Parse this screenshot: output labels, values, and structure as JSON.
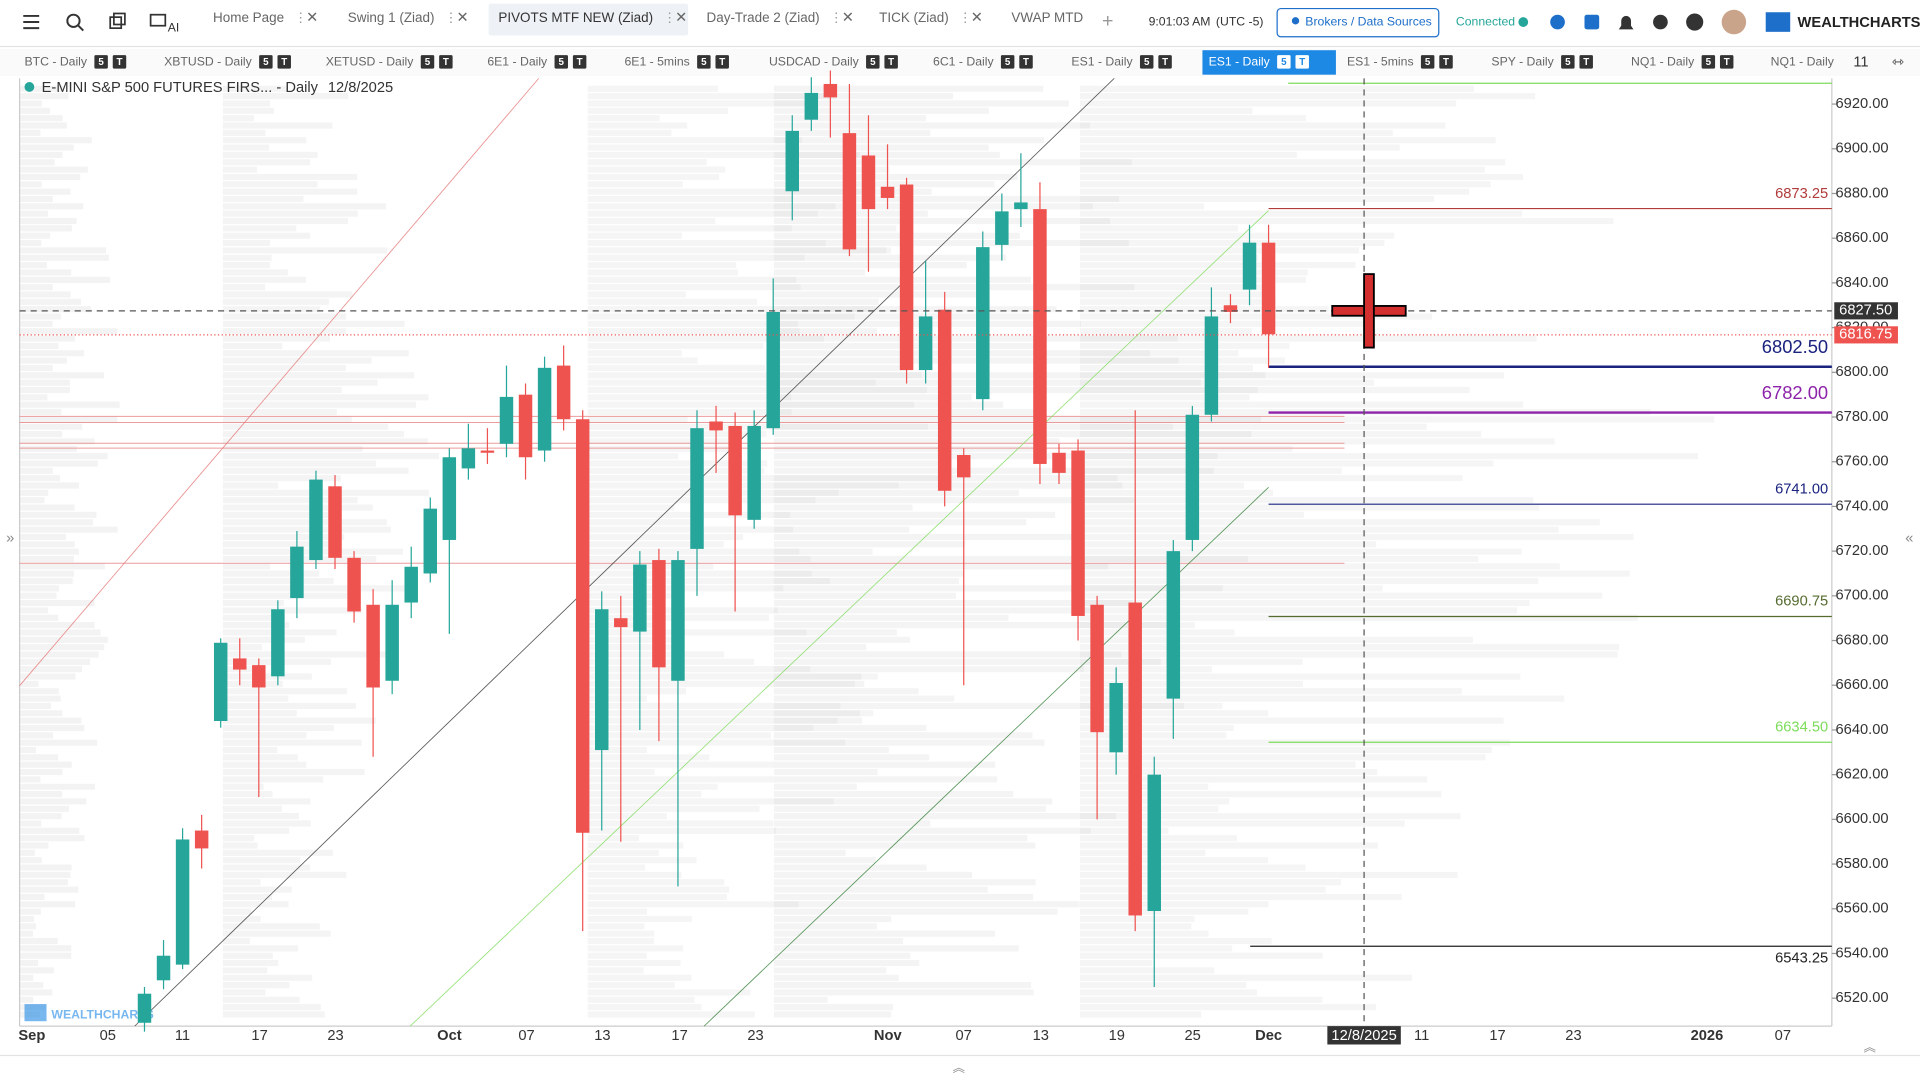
{
  "topbar": {
    "tabs": [
      "Home Page",
      "Swing 1 (Ziad)",
      "PIVOTS MTF NEW (Ziad)",
      "Day-Trade 2 (Ziad)",
      "TICK (Ziad)",
      "VWAP MTD"
    ],
    "time": "9:01:03 AM",
    "timezone": "(UTC -5)",
    "brokers": "Brokers / Data Sources",
    "status": "Connected",
    "logo": "WEALTHCHARTS",
    "ai": "AI"
  },
  "symbol_tabs": [
    "BTC - Daily",
    "XBTUSD - Daily",
    "XETUSD - Daily",
    "6E1 - Daily",
    "6E1 - 5mins",
    "USDCAD - Daily",
    "6C1 - Daily",
    "ES1 - Daily",
    "ES1 - Daily",
    "ES1 - 5mins",
    "SPY - Daily",
    "NQ1 - Daily",
    "NQ1 - Daily"
  ],
  "active_symbol_tab": 8,
  "badges": [
    "5",
    "T"
  ],
  "tab_count": 11,
  "chart_data": {
    "type": "candlestick",
    "title": "E-MINI S&P 500 FUTURES FIRS... - Daily",
    "date": "12/8/2025",
    "watermark": "WEALTHCHARTS",
    "up_color": "#26a69a",
    "down_color": "#ef5350",
    "ylim": [
      6507.5,
      6931.5
    ],
    "yticks": [
      {
        "value": 6920,
        "label": "6920.00"
      },
      {
        "value": 6900,
        "label": "6900.00"
      },
      {
        "value": 6880,
        "label": "6880.00"
      },
      {
        "value": 6860,
        "label": "6860.00"
      },
      {
        "value": 6840,
        "label": "6840.00"
      },
      {
        "value": 6820,
        "label": "6820.00"
      },
      {
        "value": 6800,
        "label": "6800.00"
      },
      {
        "value": 6780,
        "label": "6780.00"
      },
      {
        "value": 6760,
        "label": "6760.00"
      },
      {
        "value": 6740,
        "label": "6740.00"
      },
      {
        "value": 6720,
        "label": "6720.00"
      },
      {
        "value": 6700,
        "label": "6700.00"
      },
      {
        "value": 6680,
        "label": "6680.00"
      },
      {
        "value": 6660,
        "label": "6660.00"
      },
      {
        "value": 6640,
        "label": "6640.00"
      },
      {
        "value": 6620,
        "label": "6620.00"
      },
      {
        "value": 6600,
        "label": "6600.00"
      },
      {
        "value": 6580,
        "label": "6580.00"
      },
      {
        "value": 6560,
        "label": "6560.00"
      },
      {
        "value": 6540,
        "label": "6540.00"
      },
      {
        "value": 6520,
        "label": "6520.00"
      }
    ],
    "x_labels": [
      "Sep",
      "05",
      "11",
      "17",
      "23",
      "Oct",
      "07",
      "13",
      "17",
      "23",
      "Nov",
      "07",
      "13",
      "19",
      "25",
      "Dec",
      "12/8/2025",
      "11",
      "17",
      "23",
      "2026",
      "07"
    ],
    "candles": [
      {
        "open": 6509,
        "high": 6525,
        "low": 6505,
        "close": 6522
      },
      {
        "open": 6528,
        "high": 6546,
        "low": 6524,
        "close": 6539
      },
      {
        "open": 6535,
        "high": 6596,
        "low": 6533,
        "close": 6591
      },
      {
        "open": 6595,
        "high": 6602,
        "low": 6578,
        "close": 6587
      },
      {
        "open": 6644,
        "high": 6681,
        "low": 6641,
        "close": 6679
      },
      {
        "open": 6672,
        "high": 6681,
        "low": 6660,
        "close": 6667
      },
      {
        "open": 6669,
        "high": 6672,
        "low": 6610,
        "close": 6659
      },
      {
        "open": 6664,
        "high": 6698,
        "low": 6660,
        "close": 6694
      },
      {
        "open": 6699,
        "high": 6729,
        "low": 6690,
        "close": 6722
      },
      {
        "open": 6716,
        "high": 6756,
        "low": 6712,
        "close": 6752
      },
      {
        "open": 6749,
        "high": 6754,
        "low": 6712,
        "close": 6717
      },
      {
        "open": 6717,
        "high": 6720,
        "low": 6688,
        "close": 6693
      },
      {
        "open": 6696,
        "high": 6703,
        "low": 6628,
        "close": 6659
      },
      {
        "open": 6662,
        "high": 6707,
        "low": 6656,
        "close": 6696
      },
      {
        "open": 6697,
        "high": 6722,
        "low": 6690,
        "close": 6713
      },
      {
        "open": 6710,
        "high": 6744,
        "low": 6706,
        "close": 6739
      },
      {
        "open": 6725,
        "high": 6766,
        "low": 6683,
        "close": 6762
      },
      {
        "open": 6757,
        "high": 6777,
        "low": 6752,
        "close": 6766
      },
      {
        "open": 6765,
        "high": 6775,
        "low": 6759,
        "close": 6764
      },
      {
        "open": 6768,
        "high": 6803,
        "low": 6762,
        "close": 6789
      },
      {
        "open": 6790,
        "high": 6795,
        "low": 6752,
        "close": 6762
      },
      {
        "open": 6765,
        "high": 6807,
        "low": 6760,
        "close": 6802
      },
      {
        "open": 6803,
        "high": 6812,
        "low": 6774,
        "close": 6779
      },
      {
        "open": 6779,
        "high": 6783,
        "low": 6550,
        "close": 6594
      },
      {
        "open": 6631,
        "high": 6702,
        "low": 6595,
        "close": 6694
      },
      {
        "open": 6690,
        "high": 6700,
        "low": 6590,
        "close": 6686
      },
      {
        "open": 6684,
        "high": 6720,
        "low": 6640,
        "close": 6714
      },
      {
        "open": 6716,
        "high": 6721,
        "low": 6635,
        "close": 6668
      },
      {
        "open": 6662,
        "high": 6720,
        "low": 6570,
        "close": 6716
      },
      {
        "open": 6721,
        "high": 6783,
        "low": 6700,
        "close": 6775
      },
      {
        "open": 6778,
        "high": 6785,
        "low": 6755,
        "close": 6774
      },
      {
        "open": 6776,
        "high": 6782,
        "low": 6693,
        "close": 6736
      },
      {
        "open": 6734,
        "high": 6783,
        "low": 6730,
        "close": 6776
      },
      {
        "open": 6775,
        "high": 6842,
        "low": 6772,
        "close": 6827
      },
      {
        "open": 6881,
        "high": 6915,
        "low": 6868,
        "close": 6908
      },
      {
        "open": 6913,
        "high": 6932,
        "low": 6908,
        "close": 6925
      },
      {
        "open": 6929,
        "high": 6935,
        "low": 6905,
        "close": 6923
      },
      {
        "open": 6907,
        "high": 6929,
        "low": 6852,
        "close": 6855
      },
      {
        "open": 6897,
        "high": 6915,
        "low": 6845,
        "close": 6873
      },
      {
        "open": 6883,
        "high": 6902,
        "low": 6873,
        "close": 6878
      },
      {
        "open": 6884,
        "high": 6887,
        "low": 6795,
        "close": 6801
      },
      {
        "open": 6801,
        "high": 6850,
        "low": 6795,
        "close": 6825
      },
      {
        "open": 6828,
        "high": 6836,
        "low": 6740,
        "close": 6747
      },
      {
        "open": 6763,
        "high": 6766,
        "low": 6660,
        "close": 6753
      },
      {
        "open": 6788,
        "high": 6863,
        "low": 6783,
        "close": 6856
      },
      {
        "open": 6857,
        "high": 6880,
        "low": 6850,
        "close": 6872
      },
      {
        "open": 6873,
        "high": 6898,
        "low": 6865,
        "close": 6876
      },
      {
        "open": 6873,
        "high": 6885,
        "low": 6750,
        "close": 6759
      },
      {
        "open": 6764,
        "high": 6768,
        "low": 6750,
        "close": 6755
      },
      {
        "open": 6765,
        "high": 6770,
        "low": 6680,
        "close": 6691
      },
      {
        "open": 6696,
        "high": 6700,
        "low": 6600,
        "close": 6639
      },
      {
        "open": 6630,
        "high": 6668,
        "low": 6620,
        "close": 6661
      },
      {
        "open": 6697,
        "high": 6783,
        "low": 6550,
        "close": 6557
      },
      {
        "open": 6559,
        "high": 6628,
        "low": 6525,
        "close": 6620
      },
      {
        "open": 6654,
        "high": 6725,
        "low": 6636,
        "close": 6720
      },
      {
        "open": 6725,
        "high": 6785,
        "low": 6720,
        "close": 6781
      },
      {
        "open": 6781,
        "high": 6838,
        "low": 6778,
        "close": 6825
      },
      {
        "open": 6830,
        "high": 6835,
        "low": 6822,
        "close": 6827
      },
      {
        "open": 6837,
        "high": 6866,
        "low": 6830,
        "close": 6858
      },
      {
        "open": 6858,
        "high": 6866,
        "low": 6802,
        "close": 6817
      }
    ],
    "levels": [
      {
        "value": 6873.25,
        "label": "6873.25",
        "color": "#b23b3b"
      },
      {
        "value": 6802.5,
        "label": "6802.50",
        "color": "#1a237e",
        "large": true
      },
      {
        "value": 6782,
        "label": "6782.00",
        "color": "#8e24aa",
        "large": true
      },
      {
        "value": 6741,
        "label": "6741.00",
        "color": "#1a237e"
      },
      {
        "value": 6690.75,
        "label": "6690.75",
        "color": "#556b2f"
      },
      {
        "value": 6634.5,
        "label": "6634.50",
        "color": "#7ddc5a"
      },
      {
        "value": 6543.25,
        "label": "6543.25",
        "color": "#222222"
      }
    ],
    "crosshair_price": {
      "value": 6827.5,
      "label": "6827.50"
    },
    "last_price": {
      "value": 6816.75,
      "label": "6816.75"
    }
  }
}
